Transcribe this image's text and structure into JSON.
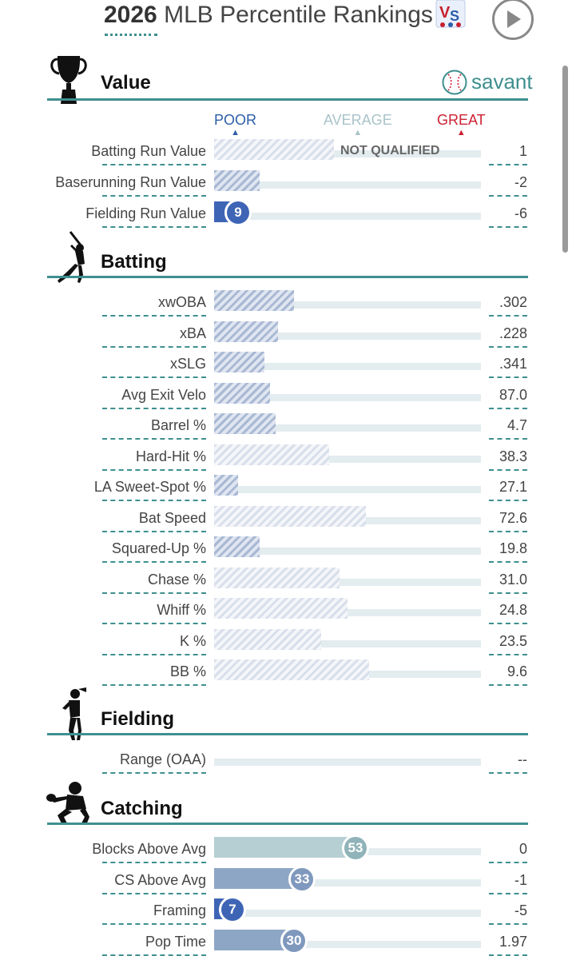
{
  "header": {
    "year": "2026",
    "title": "MLB Percentile Rankings"
  },
  "colors": {
    "accent": "#3f8f8f",
    "poor": "#2c5ea8",
    "average": "#a9c3c9",
    "great": "#cc2233"
  },
  "sections": {
    "value": {
      "title": "Value",
      "brand": "savant"
    },
    "batting": {
      "title": "Batting"
    },
    "fielding": {
      "title": "Fielding"
    },
    "catching": {
      "title": "Catching"
    }
  },
  "legend": {
    "poor": "POOR",
    "average": "AVERAGE",
    "great": "GREAT"
  },
  "value_rows": [
    {
      "label": "Batting Run Value",
      "value": "1",
      "percentile": 45,
      "note": "NOT QUALIFIED"
    },
    {
      "label": "Baserunning Run Value",
      "value": "-2",
      "percentile": 17
    },
    {
      "label": "Fielding Run Value",
      "value": "-6",
      "percentile": 9,
      "badge": "9"
    }
  ],
  "batting_rows": [
    {
      "label": "xwOBA",
      "value": ".302",
      "percentile": 30
    },
    {
      "label": "xBA",
      "value": ".228",
      "percentile": 24
    },
    {
      "label": "xSLG",
      "value": ".341",
      "percentile": 19
    },
    {
      "label": "Avg Exit Velo",
      "value": "87.0",
      "percentile": 21
    },
    {
      "label": "Barrel %",
      "value": "4.7",
      "percentile": 23
    },
    {
      "label": "Hard-Hit %",
      "value": "38.3",
      "percentile": 43
    },
    {
      "label": "LA Sweet-Spot %",
      "value": "27.1",
      "percentile": 9
    },
    {
      "label": "Bat Speed",
      "value": "72.6",
      "percentile": 57
    },
    {
      "label": "Squared-Up %",
      "value": "19.8",
      "percentile": 17
    },
    {
      "label": "Chase %",
      "value": "31.0",
      "percentile": 47
    },
    {
      "label": "Whiff %",
      "value": "24.8",
      "percentile": 50
    },
    {
      "label": "K %",
      "value": "23.5",
      "percentile": 40
    },
    {
      "label": "BB %",
      "value": "9.6",
      "percentile": 58
    }
  ],
  "fielding_rows": [
    {
      "label": "Range (OAA)",
      "value": "--",
      "percentile": 0
    }
  ],
  "catching_rows": [
    {
      "label": "Blocks Above Avg",
      "value": "0",
      "percentile": 53,
      "badge": "53"
    },
    {
      "label": "CS Above Avg",
      "value": "-1",
      "percentile": 33,
      "badge": "33"
    },
    {
      "label": "Framing",
      "value": "-5",
      "percentile": 7,
      "badge": "7"
    },
    {
      "label": "Pop Time",
      "value": "1.97",
      "percentile": 30,
      "badge": "30"
    }
  ]
}
